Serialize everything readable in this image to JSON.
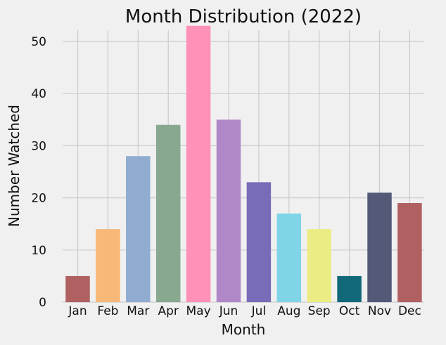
{
  "chart_data": {
    "type": "bar",
    "title": "Month Distribution (2022)",
    "xlabel": "Month",
    "ylabel": "Number Watched",
    "categories": [
      "Jan",
      "Feb",
      "Mar",
      "Apr",
      "May",
      "Jun",
      "Jul",
      "Aug",
      "Sep",
      "Oct",
      "Nov",
      "Dec"
    ],
    "values": [
      5,
      14,
      28,
      34,
      53,
      35,
      23,
      17,
      14,
      5,
      21,
      19
    ],
    "colors": [
      "#b06060",
      "#f8b878",
      "#90acd0",
      "#88a890",
      "#ff90b8",
      "#b088c8",
      "#786cb8",
      "#80d4e8",
      "#ecec84",
      "#106878",
      "#525a78",
      "#b06060"
    ],
    "ylim": [
      0,
      55
    ],
    "yticks": [
      0,
      10,
      20,
      30,
      40,
      50
    ],
    "grid": true,
    "legend": "none"
  }
}
